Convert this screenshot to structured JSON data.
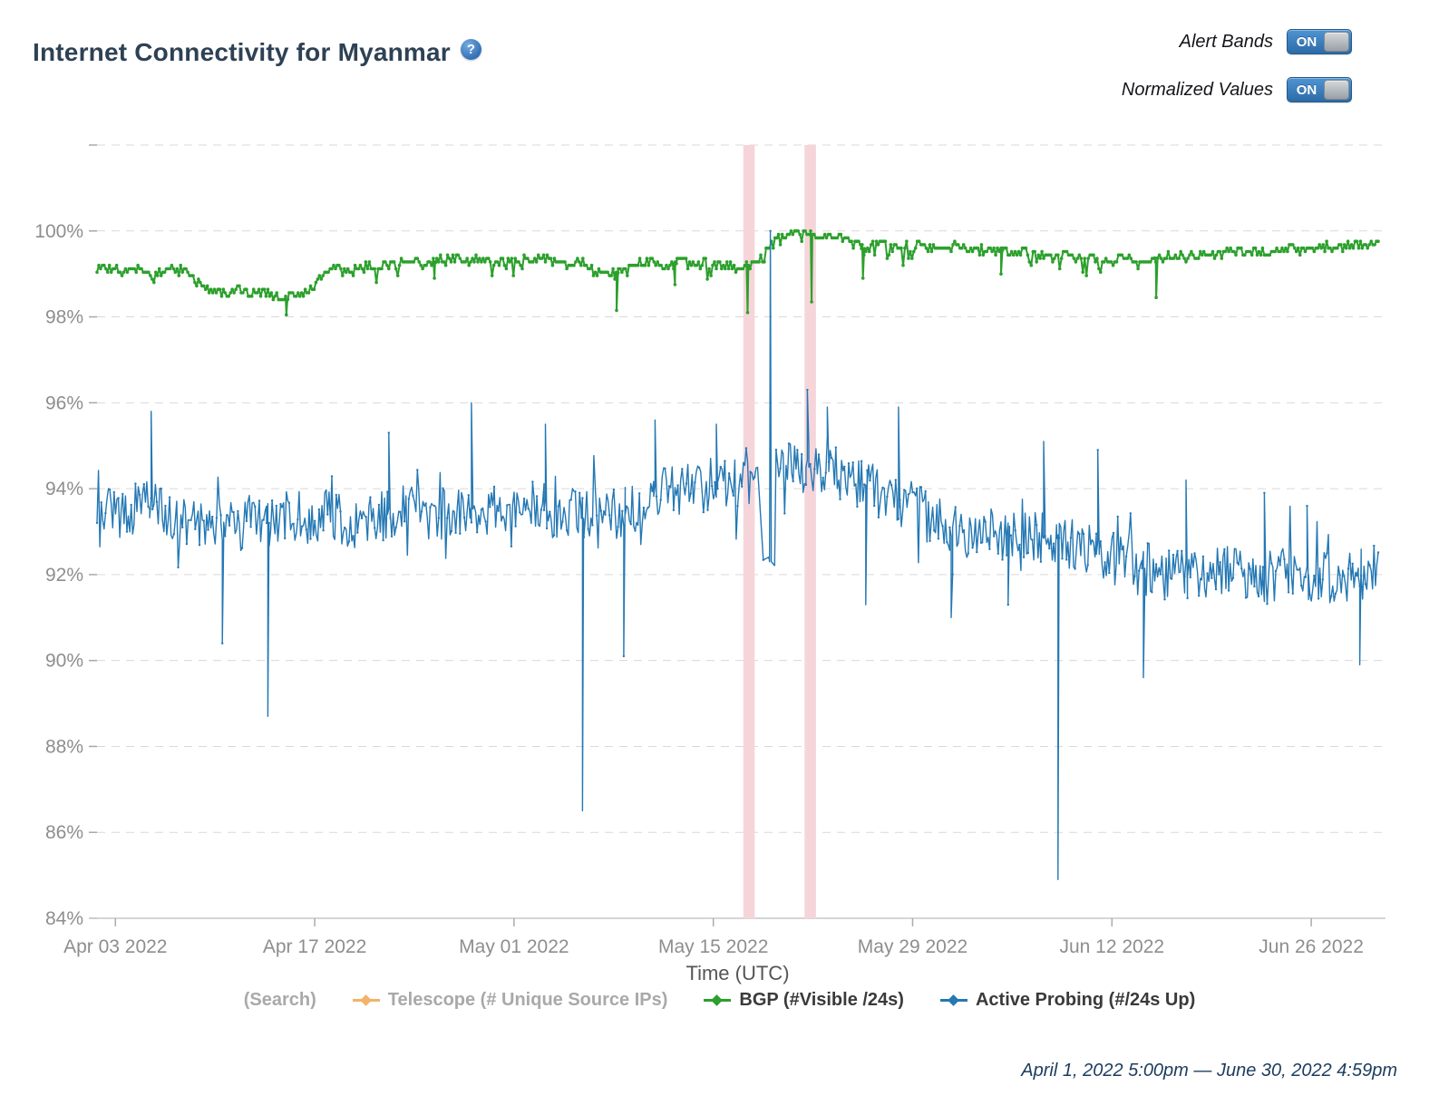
{
  "header": {
    "title": "Internet Connectivity for Myanmar",
    "help_glyph": "?",
    "toggles": [
      {
        "label": "Alert Bands",
        "state": "ON"
      },
      {
        "label": "Normalized Values",
        "state": "ON"
      }
    ]
  },
  "legend": {
    "items": [
      {
        "label": "(Search)",
        "color": null,
        "marker": false,
        "enabled": false
      },
      {
        "label": "Telescope (# Unique Source IPs)",
        "color": "#f4b26a",
        "marker": true,
        "enabled": false
      },
      {
        "label": "BGP (#Visible /24s)",
        "color": "#2ca02c",
        "marker": true,
        "enabled": true
      },
      {
        "label": "Active Probing (#/24s Up)",
        "color": "#2478b4",
        "marker": true,
        "enabled": true
      }
    ]
  },
  "footer": {
    "date_range": "April 1, 2022 5:00pm — June 30, 2022 4:59pm"
  },
  "chart_data": {
    "type": "line",
    "title": "Internet Connectivity for Myanmar",
    "xlabel": "Time (UTC)",
    "ylabel": "",
    "grid": "horizontal-dashed",
    "legend_position": "bottom",
    "x_range_days": 90,
    "x_range_label": [
      "April 1, 2022 5:00pm",
      "June 30, 2022 4:59pm"
    ],
    "ylim": [
      84,
      102
    ],
    "colors": {
      "bgp": "#2ca02c",
      "active_probing": "#2478b4",
      "telescope": "#f4b26a",
      "alert_band": "#f6d5da",
      "grid": "#d9d9d9",
      "axis_text": "#8e8e8e",
      "axis_title_text": "#555555",
      "title_text": "#2e4154",
      "footer_text": "#1d3c5e",
      "toggle_blue": "#3a7cbe"
    },
    "y_axis": {
      "ticks": [
        {
          "v": 84,
          "label": "84%"
        },
        {
          "v": 86,
          "label": "86%"
        },
        {
          "v": 88,
          "label": "88%"
        },
        {
          "v": 90,
          "label": "90%"
        },
        {
          "v": 92,
          "label": "92%"
        },
        {
          "v": 94,
          "label": "94%"
        },
        {
          "v": 96,
          "label": "96%"
        },
        {
          "v": 98,
          "label": "98%"
        },
        {
          "v": 100,
          "label": "100%"
        },
        {
          "v": 102,
          "label": ""
        }
      ]
    },
    "x_axis": {
      "title": "Time (UTC)",
      "ticks": [
        {
          "label": "Apr 03 2022",
          "day": 1.292
        },
        {
          "label": "Apr 17 2022",
          "day": 15.292
        },
        {
          "label": "May 01 2022",
          "day": 29.292
        },
        {
          "label": "May 15 2022",
          "day": 43.292
        },
        {
          "label": "May 29 2022",
          "day": 57.292
        },
        {
          "label": "Jun 12 2022",
          "day": 71.292
        },
        {
          "label": "Jun 26 2022",
          "day": 85.292
        }
      ]
    },
    "alert_bands": [
      {
        "start_day": 45.4,
        "end_day": 46.2,
        "approx_date": "May 17 2022"
      },
      {
        "start_day": 49.7,
        "end_day": 50.5,
        "approx_date": "May 21 2022"
      }
    ],
    "series": [
      {
        "id": "bgp",
        "name": "BGP (#Visible /24s)",
        "color": "#2ca02c",
        "line_width": 2,
        "marker_r": 1.8,
        "marker_every": 1,
        "samples_per_day": 8,
        "seed": 7,
        "noise_amplitude": 0.11,
        "burst_prob": 0.06,
        "burst_amplitude": 0.35,
        "burst_sign": -1,
        "quantize": 0.08,
        "daily_mean_percent": [
          99.15,
          99.1,
          99.05,
          99.1,
          99.0,
          99.1,
          99.15,
          98.8,
          98.6,
          98.55,
          98.6,
          98.55,
          98.6,
          98.35,
          98.55,
          98.6,
          99.1,
          99.15,
          99.1,
          99.2,
          99.15,
          99.25,
          99.3,
          99.2,
          99.3,
          99.35,
          99.3,
          99.35,
          99.3,
          99.25,
          99.3,
          99.35,
          99.3,
          99.2,
          99.3,
          99.1,
          98.95,
          99.1,
          99.25,
          99.3,
          99.15,
          99.3,
          99.2,
          99.25,
          99.2,
          99.15,
          99.2,
          99.55,
          99.9,
          100.0,
          99.9,
          99.95,
          99.9,
          99.75,
          99.55,
          99.75,
          99.6,
          99.65,
          99.65,
          99.6,
          99.65,
          99.6,
          99.55,
          99.6,
          99.5,
          99.55,
          99.45,
          99.4,
          99.45,
          99.4,
          99.35,
          99.3,
          99.35,
          99.3,
          99.35,
          99.4,
          99.45,
          99.4,
          99.5,
          99.45,
          99.5,
          99.55,
          99.5,
          99.55,
          99.6,
          99.55,
          99.65,
          99.6,
          99.7,
          99.65,
          99.7
        ],
        "anomalies": [
          {
            "d": 13.3,
            "v": 98.05
          },
          {
            "d": 23.7,
            "v": 98.9
          },
          {
            "d": 36.5,
            "v": 98.15
          },
          {
            "d": 40.6,
            "v": 98.75
          },
          {
            "d": 45.7,
            "v": 98.1
          },
          {
            "d": 50.2,
            "v": 98.35
          },
          {
            "d": 53.8,
            "v": 98.9
          },
          {
            "d": 63.5,
            "v": 99.0
          },
          {
            "d": 74.4,
            "v": 98.45
          }
        ]
      },
      {
        "id": "active-probing",
        "name": "Active Probing (#/24s Up)",
        "color": "#2478b4",
        "line_width": 1.4,
        "marker_r": 1.2,
        "marker_every": 3,
        "samples_per_day": 10,
        "seed": 99,
        "noise_amplitude": 0.62,
        "burst_prob": 0.12,
        "burst_amplitude": 1.1,
        "burst_sign": 0,
        "quantize": 0,
        "sparse_regions": [
          {
            "from": 46.45,
            "to": 47.62,
            "keep": 4,
            "shift": -1.85
          }
        ],
        "daily_mean_percent": [
          93.5,
          93.4,
          93.5,
          93.6,
          93.5,
          93.4,
          93.3,
          93.2,
          93.3,
          93.2,
          93.1,
          93.3,
          93.2,
          93.3,
          93.4,
          93.3,
          93.4,
          93.3,
          93.2,
          93.3,
          93.4,
          93.4,
          93.5,
          93.3,
          93.4,
          93.5,
          93.6,
          93.4,
          93.5,
          93.4,
          93.5,
          93.6,
          93.4,
          93.5,
          93.3,
          93.4,
          93.5,
          93.4,
          93.6,
          93.8,
          93.9,
          94.0,
          94.0,
          94.1,
          94.2,
          94.1,
          94.2,
          94.3,
          94.5,
          94.5,
          94.5,
          94.4,
          94.4,
          94.2,
          94.1,
          93.9,
          93.8,
          93.6,
          93.4,
          93.2,
          93.1,
          93.0,
          92.9,
          93.0,
          92.9,
          93.0,
          92.9,
          92.9,
          92.8,
          92.6,
          92.5,
          92.4,
          92.3,
          92.2,
          92.1,
          92.0,
          92.0,
          91.9,
          92.0,
          92.1,
          92.0,
          92.0,
          91.9,
          92.0,
          92.1,
          92.0,
          91.9,
          92.0,
          91.9,
          92.0,
          92.1
        ],
        "anomalies": [
          {
            "d": 3.8,
            "v": 95.8
          },
          {
            "d": 8.8,
            "v": 90.4
          },
          {
            "d": 12.0,
            "v": 88.7,
            "w": 0.08
          },
          {
            "d": 20.5,
            "v": 95.3
          },
          {
            "d": 26.3,
            "v": 96.0
          },
          {
            "d": 31.5,
            "v": 95.5
          },
          {
            "d": 34.1,
            "v": 86.5,
            "w": 0.08
          },
          {
            "d": 37.0,
            "v": 90.1
          },
          {
            "d": 39.2,
            "v": 95.6
          },
          {
            "d": 43.5,
            "v": 95.5
          },
          {
            "d": 47.3,
            "v": 100.0,
            "b": 92.3,
            "w": 0.06
          },
          {
            "d": 49.9,
            "v": 96.3
          },
          {
            "d": 51.3,
            "v": 95.9
          },
          {
            "d": 54.0,
            "v": 91.3
          },
          {
            "d": 56.3,
            "v": 95.9
          },
          {
            "d": 60.0,
            "v": 91.0
          },
          {
            "d": 64.0,
            "v": 91.3
          },
          {
            "d": 66.5,
            "v": 95.1
          },
          {
            "d": 67.5,
            "v": 84.9,
            "w": 0.08
          },
          {
            "d": 70.3,
            "v": 94.9
          },
          {
            "d": 73.5,
            "v": 89.6
          },
          {
            "d": 76.5,
            "v": 94.2
          },
          {
            "d": 82.0,
            "v": 93.9
          },
          {
            "d": 85.0,
            "v": 93.6
          },
          {
            "d": 88.7,
            "v": 89.9
          }
        ]
      }
    ]
  }
}
